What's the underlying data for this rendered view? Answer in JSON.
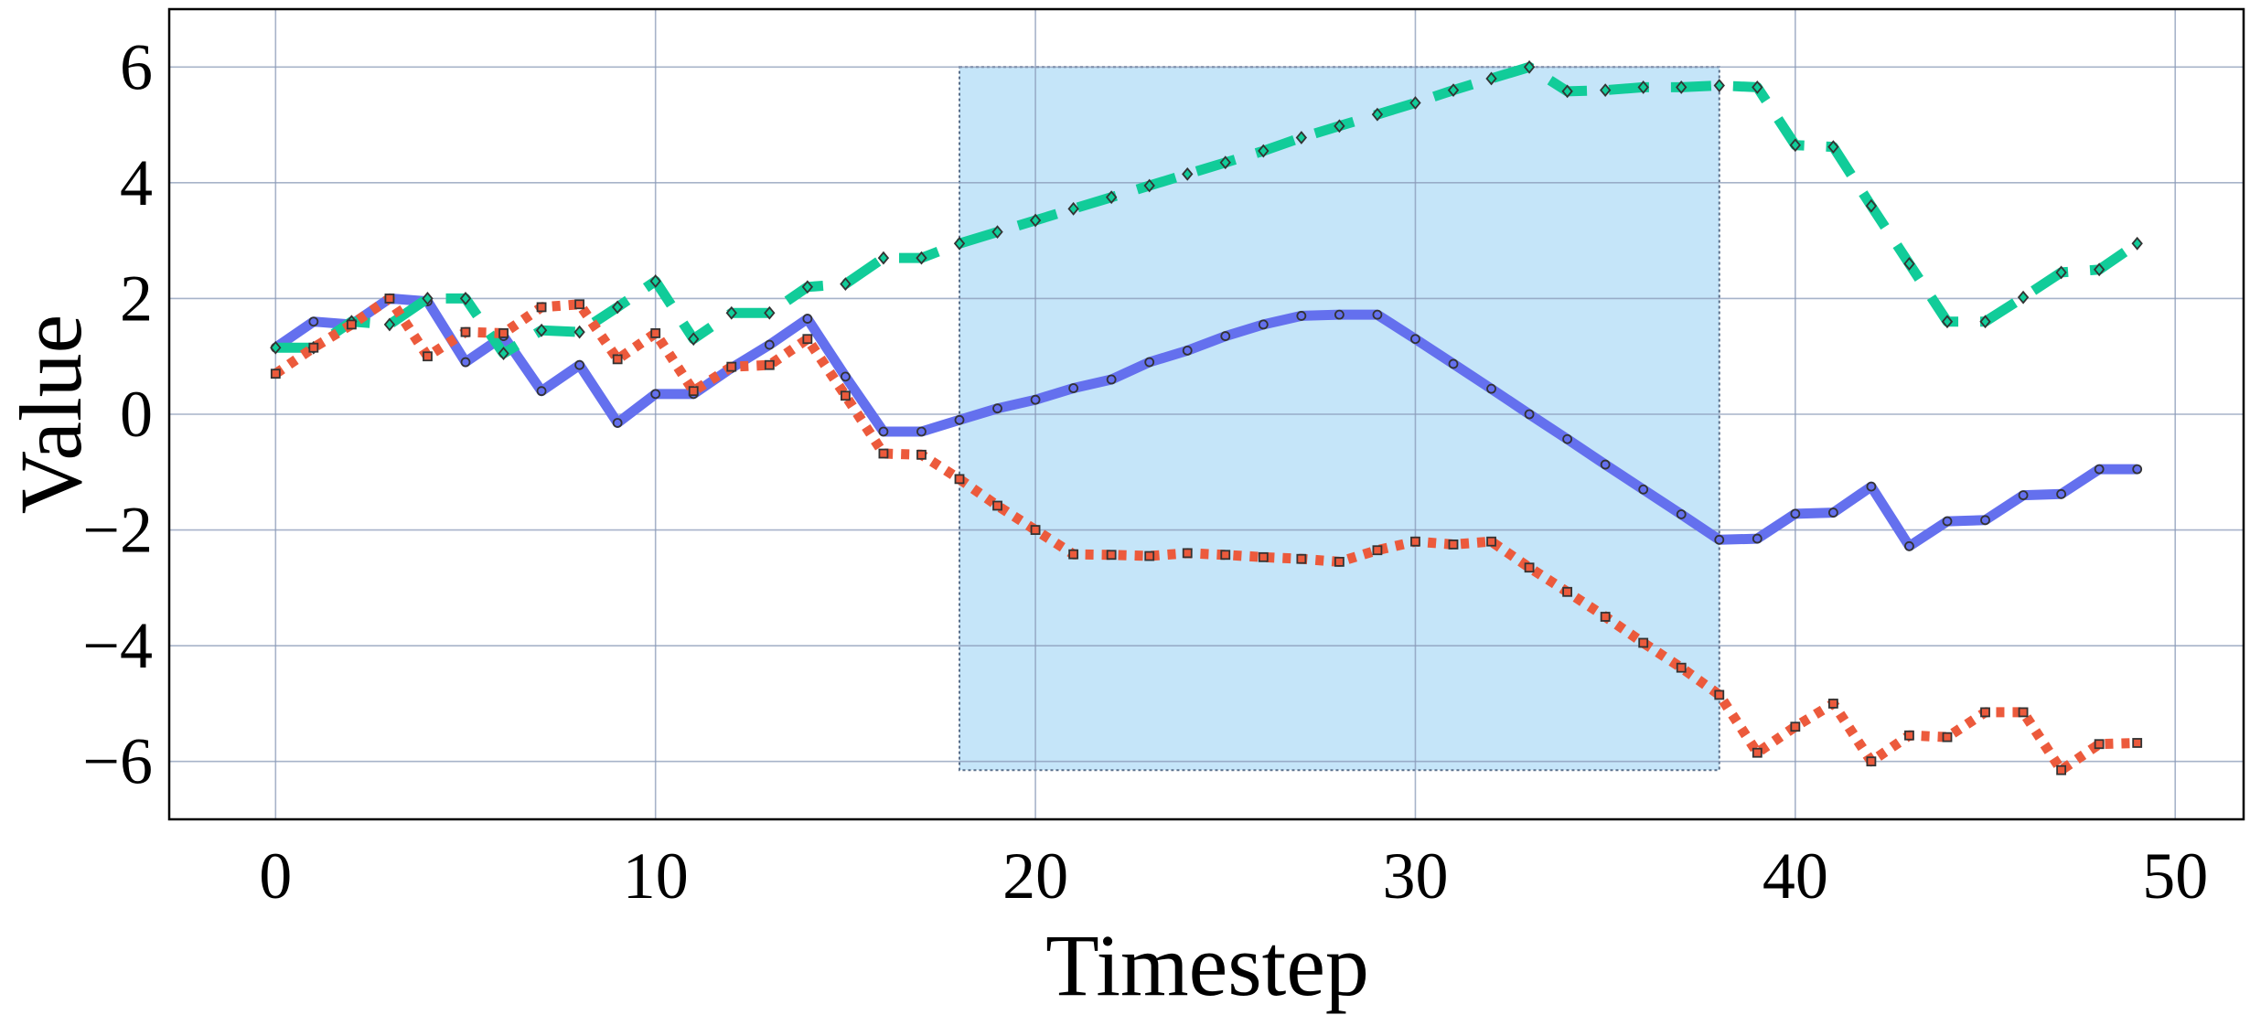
{
  "chart_data": {
    "type": "line",
    "title": "",
    "xlabel": "Timestep",
    "ylabel": "Value",
    "xlim": [
      -2.8,
      51.8
    ],
    "ylim": [
      -7.0,
      7.0
    ],
    "xticks": [
      0,
      10,
      20,
      30,
      40,
      50
    ],
    "xtick_labels": [
      "0",
      "10",
      "20",
      "30",
      "40",
      "50"
    ],
    "yticks": [
      -6,
      -4,
      -2,
      0,
      2,
      4,
      6
    ],
    "ytick_labels": [
      "−6",
      "−4",
      "−2",
      "0",
      "2",
      "4",
      "6"
    ],
    "grid": true,
    "legend": "none",
    "highlight_region": {
      "x": [
        18,
        38
      ],
      "y": [
        -6.15,
        6.0
      ],
      "color": "#c5e5f9"
    },
    "x": [
      0,
      1,
      2,
      3,
      4,
      5,
      6,
      7,
      8,
      9,
      10,
      11,
      12,
      13,
      14,
      15,
      16,
      17,
      18,
      19,
      20,
      21,
      22,
      23,
      24,
      25,
      26,
      27,
      28,
      29,
      30,
      31,
      32,
      33,
      34,
      35,
      36,
      37,
      38,
      39,
      40,
      41,
      42,
      43,
      44,
      45,
      46,
      47,
      48,
      49
    ],
    "series": [
      {
        "color": "#6470ee",
        "style": "solid",
        "marker": "circle",
        "values": [
          1.15,
          1.6,
          1.55,
          2.0,
          1.95,
          0.9,
          1.35,
          0.4,
          0.85,
          -0.15,
          0.35,
          0.35,
          0.8,
          1.2,
          1.65,
          0.65,
          -0.3,
          -0.3,
          -0.1,
          0.1,
          0.25,
          0.45,
          0.6,
          0.9,
          1.1,
          1.35,
          1.55,
          1.7,
          1.72,
          1.72,
          1.3,
          0.87,
          0.44,
          0.0,
          -0.43,
          -0.87,
          -1.3,
          -1.73,
          -2.17,
          -2.15,
          -1.72,
          -1.7,
          -1.25,
          -2.28,
          -1.85,
          -1.83,
          -1.4,
          -1.38,
          -0.95,
          -0.95
        ]
      },
      {
        "color": "#11cc99",
        "style": "dashed",
        "marker": "diamond",
        "values": [
          1.15,
          1.15,
          1.6,
          1.55,
          2.0,
          2.0,
          1.05,
          1.45,
          1.42,
          1.85,
          2.3,
          1.3,
          1.75,
          1.75,
          2.2,
          2.25,
          2.7,
          2.7,
          2.95,
          3.15,
          3.35,
          3.55,
          3.75,
          3.95,
          4.15,
          4.35,
          4.55,
          4.78,
          4.98,
          5.18,
          5.38,
          5.6,
          5.8,
          6.0,
          5.58,
          5.6,
          5.65,
          5.65,
          5.68,
          5.65,
          4.65,
          4.62,
          3.6,
          2.6,
          1.6,
          1.6,
          2.02,
          2.45,
          2.5,
          2.95
        ]
      },
      {
        "color": "#ec5a3c",
        "style": "dotted",
        "marker": "square",
        "values": [
          0.7,
          1.15,
          1.55,
          2.0,
          1.0,
          1.42,
          1.4,
          1.85,
          1.9,
          0.95,
          1.4,
          0.4,
          0.82,
          0.85,
          1.3,
          0.32,
          -0.68,
          -0.7,
          -1.12,
          -1.58,
          -2.0,
          -2.42,
          -2.43,
          -2.45,
          -2.4,
          -2.43,
          -2.47,
          -2.5,
          -2.55,
          -2.35,
          -2.2,
          -2.25,
          -2.2,
          -2.65,
          -3.07,
          -3.5,
          -3.95,
          -4.38,
          -4.85,
          -5.85,
          -5.4,
          -5.0,
          -6.0,
          -5.55,
          -5.58,
          -5.15,
          -5.15,
          -6.15,
          -5.7,
          -5.68
        ]
      }
    ]
  }
}
